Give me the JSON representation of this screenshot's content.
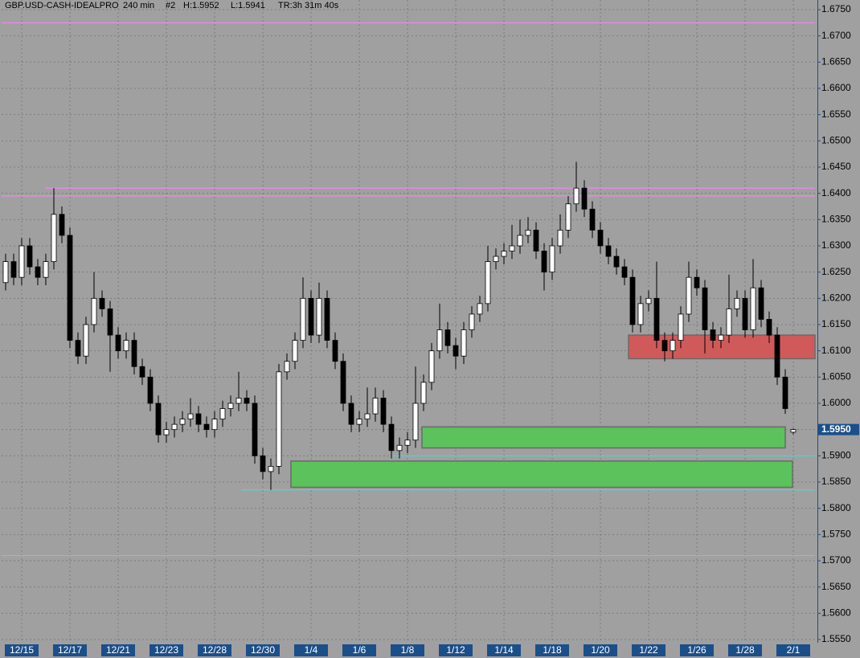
{
  "chart_data": {
    "type": "candlestick",
    "title": "GBP.USD-CASH-IDEALPRO",
    "timeframe": "240 min",
    "chart_id": "#2",
    "high_label": "H:1.5952",
    "low_label": "L:1.5941",
    "time_remaining": "TR:3h 31m 40s",
    "categories": [
      null,
      null,
      "12/15",
      null,
      null,
      null,
      null,
      null,
      "12/17",
      null,
      null,
      null,
      null,
      null,
      "12/21",
      null,
      null,
      null,
      null,
      null,
      "12/23",
      null,
      null,
      null,
      null,
      null,
      "12/28",
      null,
      null,
      null,
      null,
      null,
      "12/30",
      null,
      null,
      null,
      null,
      null,
      "1/4",
      null,
      null,
      null,
      null,
      null,
      "1/6",
      null,
      null,
      null,
      null,
      null,
      "1/8",
      null,
      null,
      null,
      null,
      null,
      "1/12",
      null,
      null,
      null,
      null,
      null,
      "1/14",
      null,
      null,
      null,
      null,
      null,
      "1/18",
      null,
      null,
      null,
      null,
      null,
      "1/20",
      null,
      null,
      null,
      null,
      null,
      "1/22",
      null,
      null,
      null,
      null,
      null,
      "1/26",
      null,
      null,
      null,
      null,
      null,
      "1/28",
      null,
      null,
      null,
      null,
      null,
      "2/1"
    ],
    "open": [
      1.623,
      1.627,
      1.624,
      1.63,
      1.626,
      1.624,
      1.627,
      1.636,
      1.632,
      1.612,
      1.609,
      1.615,
      1.62,
      1.618,
      1.613,
      1.61,
      1.612,
      1.607,
      1.605,
      1.6,
      1.594,
      1.595,
      1.596,
      1.597,
      1.598,
      1.596,
      1.595,
      1.597,
      1.599,
      1.6,
      1.601,
      1.6,
      1.59,
      1.587,
      1.588,
      1.606,
      1.608,
      1.612,
      1.62,
      1.613,
      1.62,
      1.612,
      1.608,
      1.6,
      1.596,
      1.597,
      1.598,
      1.601,
      1.596,
      1.591,
      1.592,
      1.593,
      1.6,
      1.604,
      1.61,
      1.614,
      1.611,
      1.609,
      1.614,
      1.617,
      1.619,
      1.627,
      1.628,
      1.629,
      1.63,
      1.632,
      1.633,
      1.629,
      1.625,
      1.63,
      1.633,
      1.638,
      1.641,
      1.637,
      1.633,
      1.63,
      1.628,
      1.626,
      1.624,
      1.615,
      1.619,
      1.62,
      1.612,
      1.61,
      1.612,
      1.617,
      1.624,
      1.622,
      1.614,
      1.612,
      1.613,
      1.618,
      1.62,
      1.614,
      1.622,
      1.616,
      1.613,
      1.605,
      1.5945
    ],
    "high": [
      1.6285,
      1.6285,
      1.6315,
      1.6315,
      1.6275,
      1.6285,
      1.641,
      1.6375,
      1.6335,
      1.6135,
      1.6165,
      1.625,
      1.6215,
      1.6195,
      1.6145,
      1.6135,
      1.6135,
      1.6085,
      1.6065,
      1.6015,
      1.5965,
      1.5975,
      1.5985,
      1.601,
      1.5995,
      1.5975,
      1.5985,
      1.6005,
      1.6015,
      1.606,
      1.6025,
      1.6015,
      1.5915,
      1.5895,
      1.6075,
      1.6095,
      1.6135,
      1.624,
      1.6215,
      1.623,
      1.6215,
      1.6135,
      1.6095,
      1.6015,
      1.5985,
      1.603,
      1.603,
      1.6025,
      1.5975,
      1.5935,
      1.5945,
      1.607,
      1.6055,
      1.6115,
      1.619,
      1.6155,
      1.6125,
      1.6155,
      1.6185,
      1.6205,
      1.63,
      1.6295,
      1.6305,
      1.634,
      1.635,
      1.6355,
      1.6345,
      1.6305,
      1.6315,
      1.636,
      1.6395,
      1.646,
      1.6425,
      1.6385,
      1.6345,
      1.6315,
      1.6295,
      1.6275,
      1.6255,
      1.6205,
      1.6215,
      1.627,
      1.6135,
      1.6135,
      1.6185,
      1.627,
      1.6255,
      1.6235,
      1.6155,
      1.6145,
      1.6245,
      1.6215,
      1.6215,
      1.6275,
      1.6235,
      1.6175,
      1.6145,
      1.6065,
      1.5952
    ],
    "low": [
      1.6215,
      1.6225,
      1.6225,
      1.6245,
      1.6225,
      1.6225,
      1.6255,
      1.6305,
      1.6105,
      1.6075,
      1.6075,
      1.6135,
      1.6165,
      1.606,
      1.6085,
      1.6085,
      1.6055,
      1.6035,
      1.5985,
      1.5925,
      1.5925,
      1.5935,
      1.5945,
      1.5955,
      1.5945,
      1.5935,
      1.5935,
      1.5955,
      1.5975,
      1.5985,
      1.5985,
      1.5885,
      1.5855,
      1.5835,
      1.5865,
      1.6045,
      1.6065,
      1.6105,
      1.6115,
      1.6115,
      1.6105,
      1.6065,
      1.5985,
      1.5945,
      1.5945,
      1.5955,
      1.5965,
      1.5945,
      1.5895,
      1.5895,
      1.5905,
      1.5915,
      1.5985,
      1.6025,
      1.6085,
      1.6095,
      1.6065,
      1.6075,
      1.6125,
      1.6155,
      1.6175,
      1.6255,
      1.6265,
      1.6275,
      1.6285,
      1.6305,
      1.6275,
      1.6215,
      1.6235,
      1.6285,
      1.6315,
      1.6365,
      1.6355,
      1.6315,
      1.6285,
      1.6265,
      1.6245,
      1.6225,
      1.6135,
      1.6135,
      1.6175,
      1.6105,
      1.608,
      1.6085,
      1.6105,
      1.6155,
      1.6205,
      1.6095,
      1.6105,
      1.6105,
      1.6115,
      1.6165,
      1.6125,
      1.6125,
      1.6145,
      1.6115,
      1.6035,
      1.598,
      1.5941
    ],
    "close": [
      1.627,
      1.624,
      1.63,
      1.626,
      1.624,
      1.627,
      1.636,
      1.632,
      1.612,
      1.609,
      1.615,
      1.62,
      1.618,
      1.613,
      1.61,
      1.612,
      1.607,
      1.605,
      1.6,
      1.594,
      1.595,
      1.596,
      1.597,
      1.598,
      1.596,
      1.595,
      1.597,
      1.599,
      1.6,
      1.601,
      1.6,
      1.59,
      1.587,
      1.588,
      1.606,
      1.608,
      1.612,
      1.62,
      1.613,
      1.62,
      1.612,
      1.608,
      1.6,
      1.596,
      1.597,
      1.598,
      1.601,
      1.596,
      1.591,
      1.592,
      1.593,
      1.6,
      1.604,
      1.61,
      1.614,
      1.611,
      1.609,
      1.614,
      1.617,
      1.619,
      1.627,
      1.628,
      1.629,
      1.63,
      1.632,
      1.633,
      1.629,
      1.625,
      1.63,
      1.633,
      1.638,
      1.641,
      1.637,
      1.633,
      1.63,
      1.628,
      1.626,
      1.624,
      1.615,
      1.619,
      1.62,
      1.612,
      1.61,
      1.612,
      1.617,
      1.624,
      1.622,
      1.614,
      1.612,
      1.613,
      1.618,
      1.62,
      1.614,
      1.622,
      1.616,
      1.613,
      1.605,
      1.599,
      1.595
    ],
    "up_color": "#ffffff",
    "down_color": "#000000",
    "ylim": [
      1.555,
      1.675
    ],
    "yticks": [
      {
        "value": 1.555,
        "label": "1.5550"
      },
      {
        "value": 1.56,
        "label": "1.5600"
      },
      {
        "value": 1.565,
        "label": "1.5650"
      },
      {
        "value": 1.57,
        "label": "1.5700"
      },
      {
        "value": 1.575,
        "label": "1.5750"
      },
      {
        "value": 1.58,
        "label": "1.5800"
      },
      {
        "value": 1.585,
        "label": "1.5850"
      },
      {
        "value": 1.59,
        "label": "1.5900"
      },
      {
        "value": 1.595,
        "label": "1.5950"
      },
      {
        "value": 1.6,
        "label": "1.6000"
      },
      {
        "value": 1.605,
        "label": "1.6050"
      },
      {
        "value": 1.61,
        "label": "1.6100"
      },
      {
        "value": 1.615,
        "label": "1.6150"
      },
      {
        "value": 1.62,
        "label": "1.6200"
      },
      {
        "value": 1.625,
        "label": "1.6250"
      },
      {
        "value": 1.63,
        "label": "1.6300"
      },
      {
        "value": 1.635,
        "label": "1.6350"
      },
      {
        "value": 1.64,
        "label": "1.6400"
      },
      {
        "value": 1.645,
        "label": "1.6450"
      },
      {
        "value": 1.65,
        "label": "1.6500"
      },
      {
        "value": 1.655,
        "label": "1.6550"
      },
      {
        "value": 1.66,
        "label": "1.6600"
      },
      {
        "value": 1.665,
        "label": "1.6650"
      },
      {
        "value": 1.67,
        "label": "1.6700"
      },
      {
        "value": 1.675,
        "label": "1.6750"
      }
    ],
    "last_price": {
      "value": 1.595,
      "label": "1.5950"
    },
    "hlines": [
      {
        "value": 1.6725,
        "color": "#ff80ff"
      },
      {
        "value": 1.6395,
        "color": "#ff80ff"
      },
      {
        "value": 1.641,
        "color": "#ff80ff"
      },
      {
        "value": 1.59,
        "color": "#40e0e0"
      },
      {
        "value": 1.5835,
        "color": "#40e0e0"
      },
      {
        "value": 1.571,
        "color": "#40e0e0"
      }
    ],
    "zones": [
      {
        "top": 1.613,
        "bottom": 1.6085,
        "color": "#d05a5a"
      },
      {
        "top": 1.5955,
        "bottom": 1.5915,
        "color": "#5cc25c"
      },
      {
        "top": 1.589,
        "bottom": 1.584,
        "color": "#5cc25c"
      }
    ],
    "grid": true
  }
}
